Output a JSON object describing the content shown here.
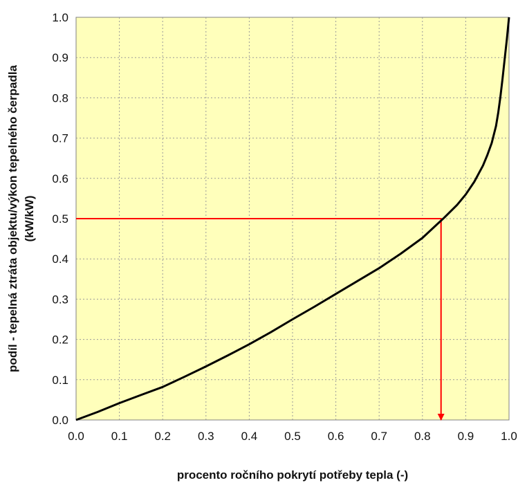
{
  "chart_data": {
    "type": "line",
    "title": "",
    "xlabel": "procento ročního pokrytí potřeby tepla (-)",
    "ylabel_lines": [
      "podíl - tepelná ztráta objektu/výkon tepelného čerpadla",
      "(kW/kW)"
    ],
    "xlim": [
      0.0,
      1.0
    ],
    "ylim": [
      0.0,
      1.0
    ],
    "x_ticks": [
      "0.0",
      "0.1",
      "0.2",
      "0.3",
      "0.4",
      "0.5",
      "0.6",
      "0.7",
      "0.8",
      "0.9",
      "1.0"
    ],
    "y_ticks": [
      "0.0",
      "0.1",
      "0.2",
      "0.3",
      "0.4",
      "0.5",
      "0.6",
      "0.7",
      "0.8",
      "0.9",
      "1.0"
    ],
    "grid": true,
    "legend": "none",
    "plot_background": "#FFFFBB",
    "series": [
      {
        "color": "#000000",
        "x": [
          0.0,
          0.05,
          0.1,
          0.15,
          0.2,
          0.25,
          0.3,
          0.35,
          0.4,
          0.45,
          0.5,
          0.55,
          0.6,
          0.65,
          0.7,
          0.75,
          0.8,
          0.85,
          0.88,
          0.9,
          0.92,
          0.94,
          0.95,
          0.96,
          0.97,
          0.975,
          0.98,
          0.985,
          0.99,
          0.995,
          1.0
        ],
        "y": [
          0.0,
          0.02,
          0.042,
          0.062,
          0.082,
          0.107,
          0.133,
          0.16,
          0.188,
          0.218,
          0.25,
          0.281,
          0.313,
          0.345,
          0.377,
          0.413,
          0.452,
          0.502,
          0.534,
          0.56,
          0.592,
          0.632,
          0.658,
          0.688,
          0.73,
          0.763,
          0.802,
          0.847,
          0.896,
          0.946,
          1.0
        ]
      }
    ],
    "annotations": [
      {
        "type": "red-arrow-path",
        "color": "#FF0000",
        "points": [
          [
            0.0,
            0.5
          ],
          [
            0.843,
            0.5
          ],
          [
            0.843,
            0.0
          ]
        ]
      }
    ]
  }
}
